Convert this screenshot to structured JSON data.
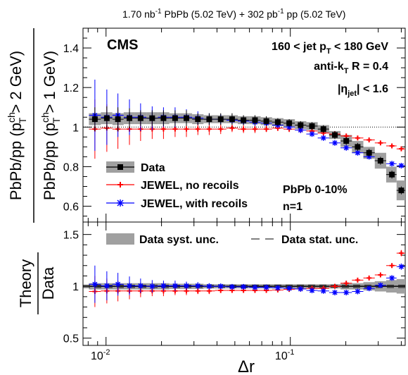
{
  "header": {
    "lumi_a": "1.70 nb",
    "lumi_a_sup": "-1",
    "mid": " PbPb (5.02 TeV) + 302 pb",
    "lumi_b_sup": "-1",
    "tail": " pp (5.02 TeV)"
  },
  "top_panel": {
    "experiment": "CMS",
    "cut_pre": "160 < jet p",
    "cut_sub": "T",
    "cut_post": " < 180 GeV",
    "algo_pre": "anti-k",
    "algo_sub": "T",
    "algo_post": " R = 0.4",
    "eta_pre": "|η",
    "eta_sub": "jet",
    "eta_post": "| < 1.6",
    "centrality": "PbPb 0-10%",
    "n_label": "n=1",
    "ylabel_line1": "PbPb/pp (p",
    "ylabel_line1_sup": "ch",
    "ylabel_line1_sub": "T",
    "ylabel_line1_post": " > 2 GeV)",
    "ylabel_line2": "PbPb/pp (p",
    "ylabel_line2_sup": "ch",
    "ylabel_line2_sub": "T",
    "ylabel_line2_post": " > 1 GeV)",
    "legend": [
      "Data",
      "JEWEL, no recoils",
      "JEWEL, with recoils"
    ],
    "yticks": [
      "0.6",
      "0.8",
      "1",
      "1.2",
      "1.4"
    ]
  },
  "bottom_panel": {
    "ylabel_num": "Theory",
    "ylabel_den": "Data",
    "legend_syst": "Data syst. unc.",
    "legend_stat": "Data stat. unc.",
    "yticks": [
      "0.5",
      "1",
      "1.5"
    ]
  },
  "xaxis": {
    "label": "Δr",
    "ticks": [
      {
        "base": "10",
        "exp": "-2"
      },
      {
        "base": "10",
        "exp": "-1"
      }
    ]
  },
  "colors": {
    "data": "#000000",
    "no_recoils": "#ff0000",
    "with_recoils": "#0000ff",
    "syst": "#a0a0a0"
  },
  "chart_data": [
    {
      "type": "scatter",
      "x_scale": "log",
      "xlim": [
        0.0075,
        0.42
      ],
      "ylim": [
        0.52,
        1.5
      ],
      "ylabel": "PbPb/pp (pT^ch > 2 GeV) / PbPb/pp (pT^ch > 1 GeV)",
      "x": [
        0.0087,
        0.0101,
        0.0116,
        0.0134,
        0.0154,
        0.0178,
        0.0205,
        0.0237,
        0.0273,
        0.0315,
        0.0363,
        0.0419,
        0.0483,
        0.0557,
        0.0643,
        0.0741,
        0.0855,
        0.0986,
        0.1137,
        0.1311,
        0.1512,
        0.1744,
        0.2011,
        0.2319,
        0.2675,
        0.3085,
        0.3558,
        0.4
      ],
      "series": [
        {
          "name": "Data",
          "values": [
            1.04,
            1.045,
            1.04,
            1.045,
            1.045,
            1.045,
            1.045,
            1.045,
            1.045,
            1.04,
            1.04,
            1.04,
            1.04,
            1.035,
            1.035,
            1.03,
            1.025,
            1.02,
            1.01,
            1.005,
            0.99,
            0.96,
            0.93,
            0.9,
            0.87,
            0.83,
            0.76,
            0.68
          ],
          "errors": [
            0.06,
            0.06,
            0.06,
            0.05,
            0.04,
            0.04,
            0.04,
            0.04,
            0.04,
            0.03,
            0.03,
            0.03,
            0.03,
            0.025,
            0.025,
            0.025,
            0.02,
            0.02,
            0.02,
            0.02,
            0.02,
            0.02,
            0.02,
            0.02,
            0.02,
            0.02,
            0.02,
            0.02
          ],
          "syst": [
            0.03,
            0.03,
            0.03,
            0.03,
            0.03,
            0.03,
            0.03,
            0.025,
            0.025,
            0.025,
            0.02,
            0.02,
            0.02,
            0.02,
            0.02,
            0.02,
            0.02,
            0.02,
            0.02,
            0.02,
            0.02,
            0.02,
            0.03,
            0.03,
            0.03,
            0.04,
            0.04,
            0.05
          ]
        },
        {
          "name": "JEWEL, no recoils",
          "values": [
            0.99,
            0.995,
            0.99,
            0.99,
            0.99,
            0.99,
            0.99,
            0.99,
            0.99,
            0.99,
            0.99,
            0.99,
            0.995,
            0.99,
            0.99,
            0.99,
            0.995,
            0.99,
            0.985,
            0.98,
            0.97,
            0.965,
            0.955,
            0.945,
            0.935,
            0.92,
            0.905,
            0.89
          ],
          "errors": [
            0.15,
            0.12,
            0.1,
            0.08,
            0.06,
            0.05,
            0.05,
            0.04,
            0.04,
            0.03,
            0.03,
            0.025,
            0.02,
            0.02,
            0.02,
            0.015,
            0.015,
            0.015,
            0.015,
            0.01,
            0.01,
            0.01,
            0.01,
            0.01,
            0.01,
            0.01,
            0.01,
            0.01
          ]
        },
        {
          "name": "JEWEL, with recoils",
          "values": [
            1.06,
            1.05,
            1.06,
            1.05,
            1.05,
            1.045,
            1.05,
            1.05,
            1.05,
            1.045,
            1.04,
            1.04,
            1.035,
            1.03,
            1.025,
            1.02,
            1.01,
            1.0,
            0.985,
            0.965,
            0.945,
            0.92,
            0.895,
            0.87,
            0.85,
            0.83,
            0.815,
            0.805
          ],
          "errors": [
            0.18,
            0.14,
            0.11,
            0.09,
            0.07,
            0.06,
            0.05,
            0.05,
            0.04,
            0.035,
            0.03,
            0.025,
            0.02,
            0.02,
            0.02,
            0.015,
            0.015,
            0.015,
            0.015,
            0.01,
            0.01,
            0.01,
            0.01,
            0.01,
            0.01,
            0.01,
            0.01,
            0.01
          ]
        }
      ]
    },
    {
      "type": "scatter",
      "x_scale": "log",
      "xlabel": "Δr",
      "ylim": [
        0.43,
        1.62
      ],
      "ylabel": "Theory / Data",
      "series": [
        {
          "name": "JEWEL, no recoils",
          "values": [
            0.95,
            0.955,
            0.955,
            0.955,
            0.955,
            0.955,
            0.955,
            0.955,
            0.955,
            0.955,
            0.955,
            0.96,
            0.96,
            0.96,
            0.96,
            0.96,
            0.965,
            0.97,
            0.975,
            0.98,
            0.98,
            1.0,
            1.03,
            1.06,
            1.08,
            1.11,
            1.2,
            1.32
          ],
          "errors": [
            0.15,
            0.12,
            0.1,
            0.08,
            0.06,
            0.05,
            0.05,
            0.04,
            0.04,
            0.03,
            0.03,
            0.025,
            0.02,
            0.02,
            0.02,
            0.015,
            0.015,
            0.015,
            0.015,
            0.015,
            0.015,
            0.015,
            0.015,
            0.015,
            0.02,
            0.02,
            0.02,
            0.03
          ]
        },
        {
          "name": "JEWEL, with recoils",
          "values": [
            1.02,
            1.005,
            1.02,
            1.005,
            1.005,
            1.0,
            1.005,
            1.005,
            1.005,
            1.005,
            1.0,
            1.0,
            0.995,
            0.995,
            0.99,
            0.99,
            0.985,
            0.98,
            0.975,
            0.96,
            0.955,
            0.94,
            0.94,
            0.95,
            0.98,
            1.01,
            1.08,
            1.19
          ],
          "errors": [
            0.18,
            0.14,
            0.11,
            0.09,
            0.07,
            0.06,
            0.05,
            0.05,
            0.04,
            0.035,
            0.03,
            0.025,
            0.02,
            0.02,
            0.02,
            0.015,
            0.015,
            0.015,
            0.015,
            0.015,
            0.015,
            0.015,
            0.015,
            0.015,
            0.02,
            0.02,
            0.02,
            0.03
          ]
        }
      ],
      "syst_band": [
        0.03,
        0.03,
        0.03,
        0.03,
        0.03,
        0.03,
        0.03,
        0.025,
        0.025,
        0.025,
        0.02,
        0.02,
        0.02,
        0.02,
        0.02,
        0.02,
        0.02,
        0.02,
        0.02,
        0.02,
        0.02,
        0.02,
        0.03,
        0.03,
        0.04,
        0.05,
        0.06,
        0.07
      ]
    }
  ]
}
